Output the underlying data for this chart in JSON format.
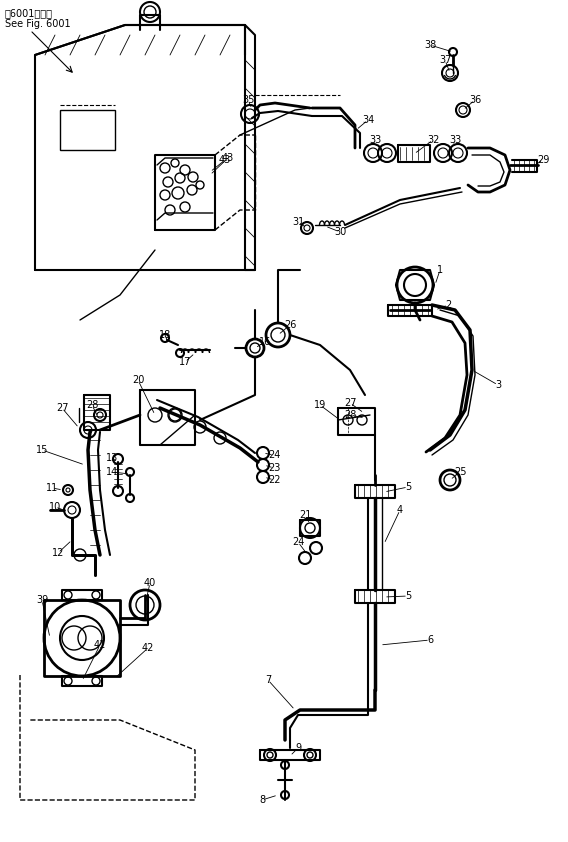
{
  "title_line1": "第6001図参照",
  "title_line2": "See Fig. 6001",
  "bg_color": "#ffffff",
  "line_color": "#000000"
}
